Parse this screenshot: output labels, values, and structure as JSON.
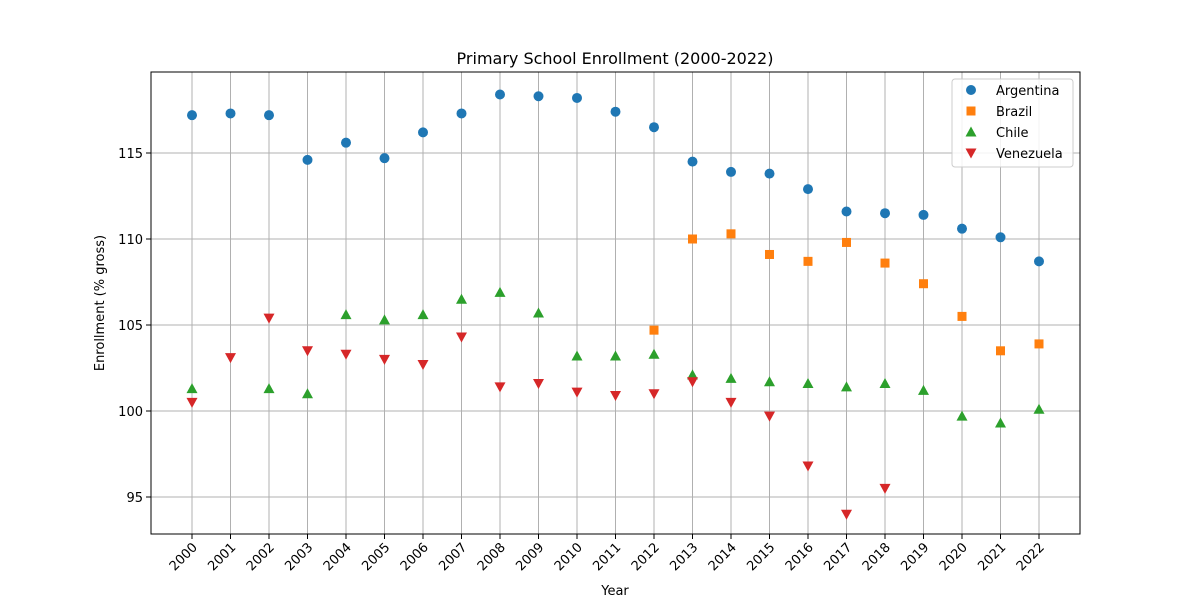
{
  "chart_data": {
    "type": "scatter",
    "title": "Primary School Enrollment (2000-2022)",
    "xlabel": "Year",
    "ylabel": "Enrollment (% gross)",
    "categories": [
      "2000",
      "2001",
      "2002",
      "2003",
      "2004",
      "2005",
      "2006",
      "2007",
      "2008",
      "2009",
      "2010",
      "2011",
      "2012",
      "2013",
      "2014",
      "2015",
      "2016",
      "2017",
      "2018",
      "2019",
      "2020",
      "2021",
      "2022"
    ],
    "ylim": [
      93,
      119.5
    ],
    "yticks": [
      95,
      100,
      105,
      110,
      115
    ],
    "grid": true,
    "legend_position": "top-right",
    "series": [
      {
        "name": "Argentina",
        "marker": "circle",
        "color": "#1f77b4",
        "values": [
          117.2,
          117.3,
          117.2,
          114.6,
          115.6,
          114.7,
          116.2,
          117.3,
          118.4,
          118.3,
          118.2,
          117.4,
          116.5,
          114.5,
          113.9,
          113.8,
          112.9,
          111.6,
          111.5,
          111.4,
          110.6,
          110.1,
          108.7
        ]
      },
      {
        "name": "Brazil",
        "marker": "square",
        "color": "#ff7f0e",
        "values": [
          null,
          null,
          null,
          null,
          null,
          null,
          null,
          null,
          null,
          null,
          null,
          null,
          104.7,
          110.0,
          110.3,
          109.1,
          108.7,
          109.8,
          108.6,
          107.4,
          105.5,
          103.5,
          103.9
        ]
      },
      {
        "name": "Chile",
        "marker": "triangle-up",
        "color": "#2ca02c",
        "values": [
          101.3,
          null,
          101.3,
          101.0,
          105.6,
          105.3,
          105.6,
          106.5,
          106.9,
          105.7,
          103.2,
          103.2,
          103.3,
          102.1,
          101.9,
          101.7,
          101.6,
          101.4,
          101.6,
          101.2,
          99.7,
          99.3,
          100.1
        ]
      },
      {
        "name": "Venezuela",
        "marker": "triangle-down",
        "color": "#d62728",
        "values": [
          100.5,
          103.1,
          105.4,
          103.5,
          103.3,
          103.0,
          102.7,
          104.3,
          101.4,
          101.6,
          101.1,
          100.9,
          101.0,
          101.7,
          100.5,
          99.7,
          96.8,
          94.0,
          95.5,
          null,
          null,
          null,
          null
        ]
      }
    ]
  }
}
